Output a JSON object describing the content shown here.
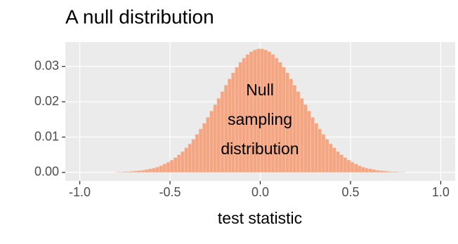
{
  "chart_data": {
    "type": "histogram",
    "title": "A null distribution",
    "x_label": "test statistic",
    "annotation": [
      "Null",
      "sampling",
      "distribution"
    ],
    "color": "#f4a582",
    "edge_color": "#fbd3c0",
    "grid": true,
    "bins": [
      -0.8,
      -0.78,
      -0.76,
      -0.74,
      -0.72,
      -0.7,
      -0.68,
      -0.66,
      -0.64,
      -0.62,
      -0.6,
      -0.58,
      -0.56,
      -0.54,
      -0.52,
      -0.5,
      -0.48,
      -0.46,
      -0.44,
      -0.42,
      -0.4,
      -0.38,
      -0.36,
      -0.34,
      -0.32,
      -0.3,
      -0.28,
      -0.26,
      -0.24,
      -0.22,
      -0.2,
      -0.18,
      -0.16,
      -0.14,
      -0.12,
      -0.1,
      -0.08,
      -0.06,
      -0.04,
      -0.02,
      0,
      0.02,
      0.04,
      0.06,
      0.08,
      0.1,
      0.12,
      0.14,
      0.16,
      0.18,
      0.2,
      0.22,
      0.24,
      0.26,
      0.28,
      0.3,
      0.32,
      0.34,
      0.36,
      0.38,
      0.4,
      0.42,
      0.44,
      0.46,
      0.48,
      0.5,
      0.52,
      0.54,
      0.56,
      0.58,
      0.6,
      0.62,
      0.64,
      0.66,
      0.68,
      0.7,
      0.72,
      0.74,
      0.76,
      0.78,
      0.8
    ],
    "values": [
      0.0001,
      0.0001,
      0.0002,
      0.0002,
      0.0003,
      0.0004,
      0.0005,
      0.0006,
      0.0008,
      0.001,
      0.0012,
      0.0015,
      0.0019,
      0.0024,
      0.0029,
      0.0035,
      0.0042,
      0.005,
      0.0059,
      0.007,
      0.0081,
      0.0094,
      0.0108,
      0.0123,
      0.0139,
      0.0156,
      0.0174,
      0.0192,
      0.021,
      0.0229,
      0.0247,
      0.0265,
      0.0282,
      0.0298,
      0.0312,
      0.0324,
      0.0334,
      0.0342,
      0.0347,
      0.035,
      0.035,
      0.0347,
      0.0342,
      0.0334,
      0.0324,
      0.0312,
      0.0298,
      0.0282,
      0.0265,
      0.0247,
      0.0229,
      0.021,
      0.0192,
      0.0174,
      0.0156,
      0.0139,
      0.0123,
      0.0108,
      0.0094,
      0.0081,
      0.007,
      0.0059,
      0.005,
      0.0042,
      0.0035,
      0.0029,
      0.0024,
      0.0019,
      0.0015,
      0.0012,
      0.001,
      0.0008,
      0.0006,
      0.0005,
      0.0004,
      0.0003,
      0.0002,
      0.0002,
      0.0001,
      0.0001
    ],
    "xlim": [
      -1.08,
      1.08
    ],
    "ylim": [
      -0.0024,
      0.0369
    ],
    "xticks": [
      {
        "value": -1,
        "label": "-1.0"
      },
      -0.5,
      {
        "value": 0,
        "label": "0.0"
      },
      0.5,
      {
        "value": 1,
        "label": "1.0"
      }
    ],
    "yticks": [
      {
        "value": 0,
        "label": "0.00"
      },
      0.01,
      0.02,
      0.03
    ]
  }
}
